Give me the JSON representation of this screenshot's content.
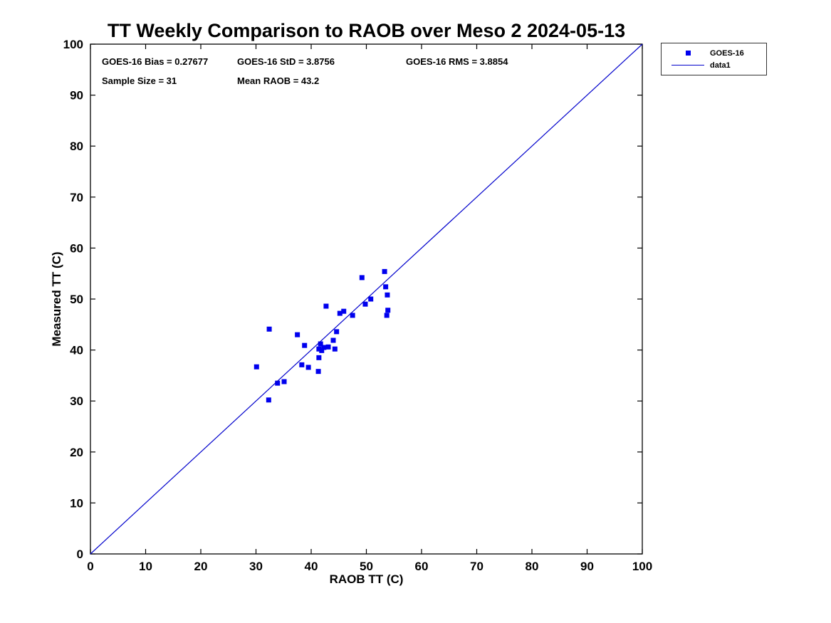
{
  "title": "TT Weekly Comparison to RAOB over Meso 2 2024-05-13",
  "annotations": {
    "bias": "GOES-16 Bias = 0.27677",
    "std": "GOES-16 StD = 3.8756",
    "rms": "GOES-16 RMS = 3.8854",
    "sample_size": "Sample Size = 31",
    "mean_raob": "Mean RAOB = 43.2"
  },
  "legend": {
    "entries": [
      {
        "label": "GOES-16",
        "type": "marker"
      },
      {
        "label": "data1",
        "type": "line"
      }
    ]
  },
  "chart_data": {
    "type": "scatter",
    "title": "TT Weekly Comparison to RAOB over Meso 2 2024-05-13",
    "xlabel": "RAOB TT (C)",
    "ylabel": "Measured TT (C)",
    "xlim": [
      0,
      100
    ],
    "ylim": [
      0,
      100
    ],
    "xticks": [
      0,
      10,
      20,
      30,
      40,
      50,
      60,
      70,
      80,
      90,
      100
    ],
    "yticks": [
      0,
      10,
      20,
      30,
      40,
      50,
      60,
      70,
      80,
      90,
      100
    ],
    "grid": false,
    "legend_position": "top-right-outside",
    "marker_color": "#0000EE",
    "line_color": "#0000CC",
    "stats": {
      "bias": 0.27677,
      "std": 3.8756,
      "rms": 3.8854,
      "sample_size": 31,
      "mean_raob": 43.2
    },
    "series": [
      {
        "name": "GOES-16",
        "type": "scatter",
        "marker": "square",
        "points": [
          [
            30.1,
            36.7
          ],
          [
            32.3,
            30.2
          ],
          [
            32.4,
            44.1
          ],
          [
            33.9,
            33.5
          ],
          [
            35.1,
            33.8
          ],
          [
            37.5,
            43.0
          ],
          [
            38.3,
            37.1
          ],
          [
            38.8,
            40.9
          ],
          [
            39.5,
            36.6
          ],
          [
            41.3,
            35.8
          ],
          [
            41.4,
            38.5
          ],
          [
            41.4,
            40.2
          ],
          [
            41.7,
            41.2
          ],
          [
            41.9,
            39.9
          ],
          [
            42.3,
            40.5
          ],
          [
            42.7,
            48.6
          ],
          [
            43.1,
            40.6
          ],
          [
            44.0,
            41.9
          ],
          [
            44.3,
            40.2
          ],
          [
            44.6,
            43.6
          ],
          [
            45.2,
            47.2
          ],
          [
            45.9,
            47.6
          ],
          [
            47.5,
            46.8
          ],
          [
            49.2,
            54.2
          ],
          [
            49.8,
            49.0
          ],
          [
            50.8,
            50.0
          ],
          [
            53.3,
            55.4
          ],
          [
            53.5,
            52.4
          ],
          [
            53.8,
            50.8
          ],
          [
            53.9,
            47.8
          ],
          [
            53.7,
            46.8
          ]
        ]
      },
      {
        "name": "data1",
        "type": "line",
        "points": [
          [
            0,
            0
          ],
          [
            100,
            100
          ]
        ]
      }
    ]
  }
}
